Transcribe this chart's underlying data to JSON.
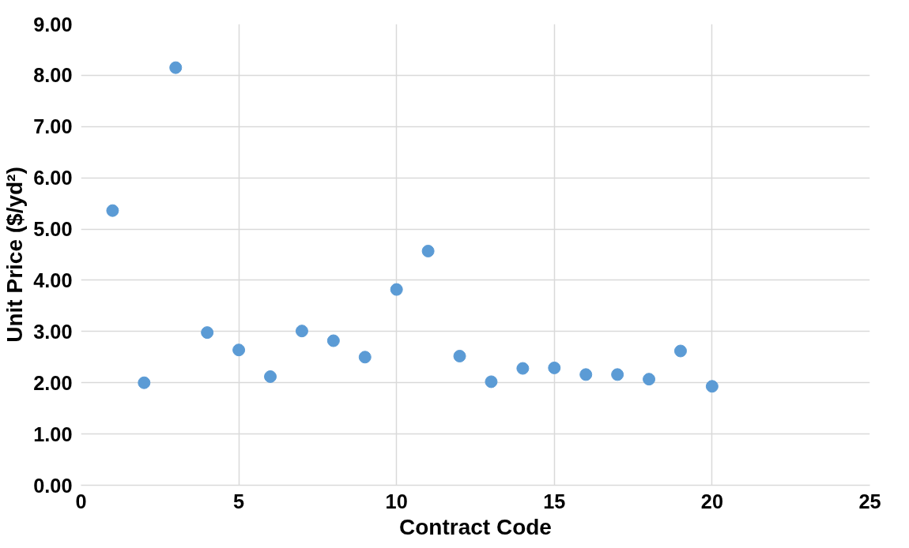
{
  "chart_data": {
    "type": "scatter",
    "xlabel": "Contract Code",
    "ylabel": "Unit Price ($/yd²)",
    "x": [
      1,
      2,
      3,
      4,
      5,
      6,
      7,
      8,
      9,
      10,
      11,
      12,
      13,
      14,
      15,
      16,
      17,
      18,
      19,
      20
    ],
    "series": [
      {
        "color": "#5b9bd5",
        "values": [
          5.36,
          2.0,
          8.15,
          2.98,
          2.64,
          2.12,
          3.01,
          2.82,
          2.5,
          3.82,
          4.57,
          2.52,
          2.02,
          2.28,
          2.29,
          2.16,
          2.16,
          2.07,
          2.62,
          1.93
        ]
      }
    ],
    "xlim": [
      0,
      25
    ],
    "xticks": [
      0,
      5,
      10,
      15,
      20,
      25
    ],
    "ylim": [
      0,
      9
    ],
    "yticks": [
      {
        "value": 0,
        "label": "0.00"
      },
      {
        "value": 1,
        "label": "1.00"
      },
      {
        "value": 2,
        "label": "2.00"
      },
      {
        "value": 3,
        "label": "3.00"
      },
      {
        "value": 4,
        "label": "4.00"
      },
      {
        "value": 5,
        "label": "5.00"
      },
      {
        "value": 6,
        "label": "6.00"
      },
      {
        "value": 7,
        "label": "7.00"
      },
      {
        "value": 8,
        "label": "8.00"
      },
      {
        "value": 9,
        "label": "9.00"
      }
    ],
    "grid": true,
    "marker": "circle"
  }
}
